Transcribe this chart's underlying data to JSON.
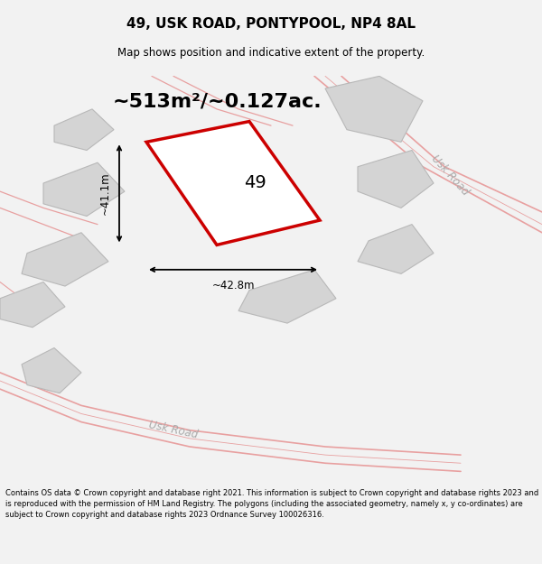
{
  "title": "49, USK ROAD, PONTYPOOL, NP4 8AL",
  "subtitle": "Map shows position and indicative extent of the property.",
  "area_text": "~513m²/~0.127ac.",
  "width_label": "~42.8m",
  "height_label": "~41.1m",
  "number_label": "49",
  "footer": "Contains OS data © Crown copyright and database right 2021. This information is subject to Crown copyright and database rights 2023 and is reproduced with the permission of HM Land Registry. The polygons (including the associated geometry, namely x, y co-ordinates) are subject to Crown copyright and database rights 2023 Ordnance Survey 100026316.",
  "bg_color": "#f2f2f2",
  "map_bg": "#ffffff",
  "road_color": "#e8a0a0",
  "road_color2": "#d08080",
  "road_fill": "#e8e8e8",
  "plot_color": "#cc0000",
  "neighbor_fill": "#d4d4d4",
  "neighbor_edge": "#b8b8b8",
  "dim_color": "#000000",
  "text_color": "#000000",
  "road_label_color": "#aaaaaa"
}
